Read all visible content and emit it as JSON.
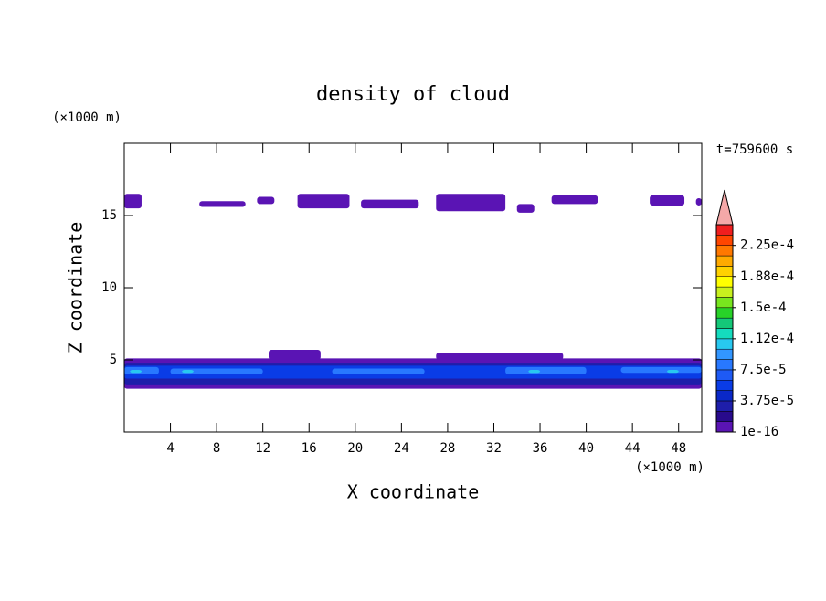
{
  "chart_data": {
    "type": "contour",
    "title": "density of cloud",
    "xlabel": "X coordinate",
    "ylabel": "Z coordinate",
    "xunit": "(×1000 m)",
    "yunit": "(×1000 m)",
    "annotation": "t=759600 s",
    "xlim": [
      0,
      50
    ],
    "ylim": [
      0,
      20
    ],
    "xticks": [
      4,
      8,
      12,
      16,
      20,
      24,
      28,
      32,
      36,
      40,
      44,
      48
    ],
    "yticks": [
      5,
      10,
      15
    ],
    "colorbar": {
      "clim": [
        0,
        0.00025
      ],
      "extend": "max",
      "extend_color": "#f4a8a8",
      "colors": [
        "#5a14b4",
        "#280a8c",
        "#1e1eaa",
        "#0a28c8",
        "#0a3ce6",
        "#1e5af5",
        "#2878ff",
        "#3296ff",
        "#28c8f0",
        "#14dcbe",
        "#14c878",
        "#28d228",
        "#78e61e",
        "#c8f01e",
        "#ffff00",
        "#ffd200",
        "#ffaa00",
        "#ff7800",
        "#ff4600",
        "#f01e1e"
      ],
      "ticks": [
        1e-16,
        {
          "value": 3.75e-05,
          "label": "3.75e-5"
        },
        {
          "value": 7.5e-05,
          "label": "7.5e-5"
        },
        {
          "value": 0.0001125,
          "label": "1.12e-4"
        },
        {
          "value": 0.00015,
          "label": "1.5e-4"
        },
        {
          "value": 0.0001875,
          "label": "1.88e-4"
        },
        {
          "value": 0.000225,
          "label": "2.25e-4"
        }
      ]
    },
    "regions": [
      {
        "x": [
          0,
          1.5
        ],
        "z": [
          15.5,
          16.5
        ],
        "level": 0
      },
      {
        "x": [
          6.5,
          10.5
        ],
        "z": [
          15.6,
          16.0
        ],
        "level": 0
      },
      {
        "x": [
          11.5,
          13
        ],
        "z": [
          15.8,
          16.3
        ],
        "level": 0
      },
      {
        "x": [
          15,
          19.5
        ],
        "z": [
          15.5,
          16.5
        ],
        "level": 0
      },
      {
        "x": [
          20.5,
          25.5
        ],
        "z": [
          15.5,
          16.1
        ],
        "level": 0
      },
      {
        "x": [
          27,
          33
        ],
        "z": [
          15.3,
          16.5
        ],
        "level": 0
      },
      {
        "x": [
          34,
          35.5
        ],
        "z": [
          15.2,
          15.8
        ],
        "level": 0
      },
      {
        "x": [
          37,
          41
        ],
        "z": [
          15.8,
          16.4
        ],
        "level": 0
      },
      {
        "x": [
          45.5,
          48.5
        ],
        "z": [
          15.7,
          16.4
        ],
        "level": 0
      },
      {
        "x": [
          49.5,
          50
        ],
        "z": [
          15.7,
          16.2
        ],
        "level": 0
      },
      {
        "x": [
          0,
          50
        ],
        "z": [
          3.0,
          5.1
        ],
        "level": 0
      },
      {
        "x": [
          12.5,
          17
        ],
        "z": [
          5.0,
          5.7
        ],
        "level": 0
      },
      {
        "x": [
          27,
          38
        ],
        "z": [
          5.0,
          5.5
        ],
        "level": 0
      },
      {
        "x": [
          0,
          50
        ],
        "z": [
          3.3,
          4.8
        ],
        "level": 2
      },
      {
        "x": [
          0,
          50
        ],
        "z": [
          3.7,
          4.6
        ],
        "level": 4
      },
      {
        "x": [
          0,
          3
        ],
        "z": [
          4.0,
          4.5
        ],
        "level": 6
      },
      {
        "x": [
          4,
          12
        ],
        "z": [
          4.0,
          4.4
        ],
        "level": 6
      },
      {
        "x": [
          18,
          26
        ],
        "z": [
          4.0,
          4.4
        ],
        "level": 6
      },
      {
        "x": [
          33,
          40
        ],
        "z": [
          4.0,
          4.5
        ],
        "level": 6
      },
      {
        "x": [
          43,
          50
        ],
        "z": [
          4.1,
          4.5
        ],
        "level": 6
      },
      {
        "x": [
          0.5,
          1.5
        ],
        "z": [
          4.1,
          4.3
        ],
        "level": 8
      },
      {
        "x": [
          5,
          6
        ],
        "z": [
          4.1,
          4.3
        ],
        "level": 8
      },
      {
        "x": [
          35,
          36
        ],
        "z": [
          4.1,
          4.3
        ],
        "level": 8
      },
      {
        "x": [
          47,
          48
        ],
        "z": [
          4.1,
          4.3
        ],
        "level": 8
      }
    ]
  }
}
